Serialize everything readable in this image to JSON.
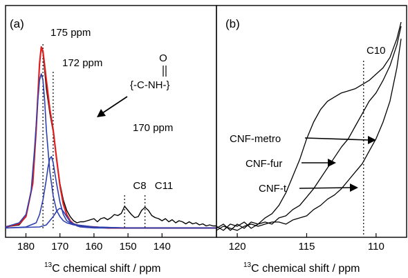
{
  "chart_data": [
    {
      "panel_label": "(a)",
      "type": "line",
      "xlabel_sup": "13",
      "xlabel_main": "C chemical shift / ppm",
      "x_reversed": true,
      "xlim": [
        186,
        124
      ],
      "ylim": [
        0,
        100
      ],
      "x_ticks": [
        "180",
        "170",
        "160",
        "150",
        "140"
      ],
      "x_tick_values": [
        180,
        170,
        160,
        150,
        140
      ],
      "colors": {
        "measured": "#000000",
        "fit": "#e02020",
        "components": "#2d3fae"
      },
      "series": [
        {
          "role": "measured",
          "color": "#000000",
          "x": [
            186,
            182,
            180,
            178,
            177,
            176,
            175.5,
            175,
            174,
            173,
            172,
            171,
            170,
            169,
            168,
            167,
            166,
            165,
            164,
            163,
            162,
            161,
            160,
            159,
            158,
            157,
            156,
            155,
            154,
            153,
            152,
            151,
            150,
            149,
            148,
            147,
            146,
            145,
            144,
            143,
            142,
            141,
            140,
            139,
            138,
            137,
            136,
            135,
            134,
            133,
            132,
            131,
            130,
            129,
            128,
            127,
            126,
            125,
            124
          ],
          "y": [
            1,
            2,
            6,
            22,
            48,
            80,
            88,
            85,
            68,
            56,
            47,
            34,
            22,
            14,
            9,
            6,
            4,
            3,
            3.5,
            3.5,
            4,
            4.5,
            5,
            3.5,
            5,
            5.5,
            4.5,
            5.5,
            7,
            6.5,
            7.5,
            11,
            9,
            7,
            5.5,
            6,
            9,
            10.5,
            9,
            6.5,
            5.5,
            5,
            4,
            5,
            3.5,
            4.5,
            3,
            4,
            3.5,
            2.5,
            3.5,
            2.5,
            3,
            2,
            2.5,
            1.5,
            2,
            1.5,
            1.5
          ]
        },
        {
          "role": "fit",
          "color": "#e02020",
          "x": [
            186,
            182,
            180,
            178,
            177,
            176,
            175.5,
            175,
            174,
            173,
            172,
            171,
            170,
            169,
            168,
            167,
            166,
            164,
            160,
            156,
            150,
            145,
            140,
            130,
            124
          ],
          "y": [
            1,
            2.5,
            6,
            22,
            48,
            80,
            88,
            86,
            72,
            58,
            48,
            34,
            21,
            12,
            7,
            4,
            2.5,
            1.5,
            1,
            0.5,
            0.5,
            0.5,
            0.5,
            0.5,
            0.5
          ]
        },
        {
          "role": "component",
          "center": "175 ppm",
          "color": "#2d3fae",
          "x": [
            186,
            182,
            180,
            178.5,
            177.5,
            176.5,
            176,
            175.5,
            175,
            174.5,
            174,
            173,
            172,
            171,
            170,
            169,
            168,
            166,
            164,
            160,
            150,
            140,
            124
          ],
          "y": [
            1,
            3,
            7,
            18,
            38,
            62,
            72,
            75,
            72,
            62,
            48,
            28,
            16,
            9,
            6,
            4,
            3,
            2,
            1.5,
            1,
            0.5,
            0.5,
            0.5
          ]
        },
        {
          "role": "component",
          "center": "172 ppm",
          "color": "#2d3fae",
          "x": [
            186,
            180,
            177,
            176,
            175,
            174,
            173.5,
            173,
            172.5,
            172,
            171,
            170,
            169,
            168,
            167,
            165,
            160,
            150,
            124
          ],
          "y": [
            0.5,
            1,
            3,
            7,
            14,
            24,
            30,
            34,
            35,
            32,
            22,
            13,
            7,
            4,
            3,
            2,
            1,
            0.5,
            0.5
          ]
        },
        {
          "role": "component",
          "center": "170 ppm",
          "color": "#2d3fae",
          "x": [
            186,
            176,
            174,
            173,
            172,
            171,
            170.5,
            170,
            169.5,
            169,
            168,
            167,
            166,
            165,
            164,
            160,
            150,
            124
          ],
          "y": [
            0.5,
            1,
            2,
            4,
            6,
            8.5,
            9.5,
            10,
            9.5,
            8.5,
            6,
            3.5,
            2.5,
            1.5,
            1,
            0.5,
            0.5,
            0.5
          ]
        }
      ],
      "guides": [
        {
          "x": 175,
          "label": "175 ppm"
        },
        {
          "x": 172,
          "label": "172 ppm"
        },
        {
          "x": 151,
          "label": "C8"
        },
        {
          "x": 145,
          "label": "C11"
        }
      ],
      "annotations": {
        "peak_170": "170 ppm",
        "amide_o": "O",
        "amide_group": "{-C-NH-}"
      }
    },
    {
      "panel_label": "(b)",
      "type": "line",
      "xlabel_sup": "13",
      "xlabel_main": "C chemical shift / ppm",
      "x_reversed": true,
      "xlim": [
        121.5,
        107.8
      ],
      "ylim": [
        0,
        100
      ],
      "x_ticks": [
        "120",
        "115",
        "110"
      ],
      "x_tick_values": [
        120,
        115,
        110
      ],
      "series": [
        {
          "name": "CNF-metro",
          "color": "#000000",
          "x": [
            121.5,
            121,
            120.5,
            120,
            119.5,
            119,
            118.5,
            118,
            117.5,
            117,
            116.5,
            116,
            115.5,
            115,
            114.5,
            114,
            113.5,
            113,
            112.5,
            112,
            111.5,
            111,
            110.5,
            110,
            109.5,
            109,
            108.5,
            108.2
          ],
          "y": [
            1,
            3,
            0,
            3,
            1,
            4,
            3,
            6,
            8,
            12,
            18,
            26,
            34,
            44,
            52,
            58,
            62,
            64,
            66,
            67,
            68,
            70,
            72,
            75,
            78,
            83,
            92,
            100
          ]
        },
        {
          "name": "CNF-fur",
          "color": "#000000",
          "x": [
            121.5,
            121,
            120.5,
            120,
            119.5,
            119,
            118.5,
            118,
            117.5,
            117,
            116.5,
            116,
            115.5,
            115,
            114.5,
            114,
            113.5,
            113,
            112.5,
            112,
            111.5,
            111,
            110.5,
            110,
            109.5,
            109,
            108.5,
            108.2
          ],
          "y": [
            2,
            0,
            3,
            2,
            4,
            1,
            3,
            4,
            3,
            6,
            7,
            10,
            12,
            16,
            20,
            25,
            30,
            35,
            40,
            44,
            50,
            56,
            62,
            66,
            72,
            79,
            89,
            98
          ]
        },
        {
          "name": "CNF-t",
          "color": "#000000",
          "x": [
            121.5,
            121,
            120.5,
            120,
            119.5,
            119,
            118.5,
            118,
            117.5,
            117,
            116.5,
            116,
            115.5,
            115,
            114.5,
            114,
            113.5,
            113,
            112.5,
            112,
            111.5,
            111,
            110.5,
            110,
            109.5,
            109,
            108.5,
            108.2
          ],
          "y": [
            0,
            2,
            1,
            0,
            2,
            3,
            2,
            3,
            4,
            4,
            3,
            5,
            6,
            7,
            10,
            12,
            15,
            17,
            20,
            24,
            28,
            32,
            38,
            44,
            52,
            62,
            78,
            92
          ]
        }
      ],
      "guides": [
        {
          "x": 110.9,
          "label": "C10"
        }
      ]
    }
  ]
}
